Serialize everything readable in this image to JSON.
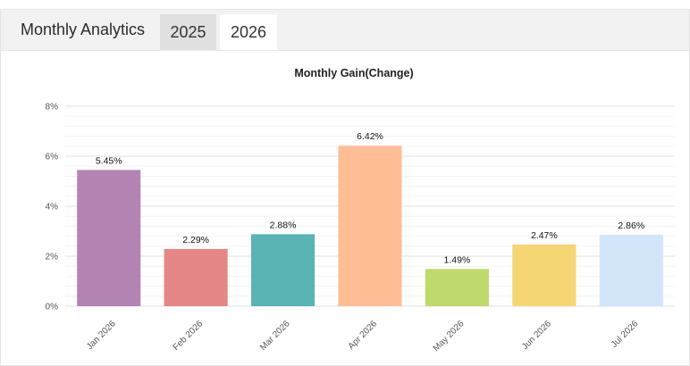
{
  "header": {
    "title": "Monthly Analytics",
    "tabs": [
      {
        "label": "2025",
        "selected": false
      },
      {
        "label": "2026",
        "selected": true
      }
    ]
  },
  "colors": {
    "bars": [
      "#b485b3",
      "#e48786",
      "#5ab4b3",
      "#ffbd96",
      "#c0d96d",
      "#f6d574",
      "#d3e6f9"
    ],
    "grid": "#e6e6e6",
    "tab_inactive_bg": "#e0e0e0",
    "header_bg": "#f2f2f2"
  },
  "chart_data": {
    "type": "bar",
    "title": "Monthly Gain(Change)",
    "categories": [
      "Jan 2026",
      "Feb 2026",
      "Mar 2026",
      "Apr 2026",
      "May 2026",
      "Jun 2026",
      "Jul 2026"
    ],
    "values": [
      5.45,
      2.29,
      2.88,
      6.42,
      1.49,
      2.47,
      2.86
    ],
    "value_labels": [
      "5.45%",
      "2.29%",
      "2.88%",
      "6.42%",
      "1.49%",
      "2.47%",
      "2.86%"
    ],
    "ylim": [
      0,
      8
    ],
    "yticks": [
      0,
      2,
      4,
      6,
      8
    ],
    "ytick_labels": [
      "0%",
      "2%",
      "4%",
      "6%",
      "8%"
    ],
    "xlabel": "",
    "ylabel": "",
    "grid": true,
    "legend": "none"
  }
}
